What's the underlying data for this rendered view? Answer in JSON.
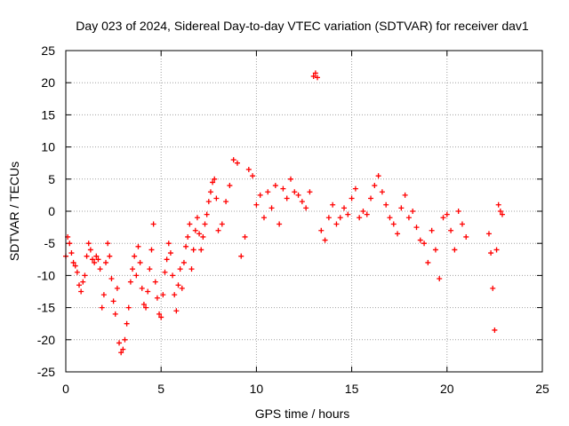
{
  "chart_data": {
    "type": "scatter",
    "title": "Day 023 of 2024, Sidereal Day-to-day VTEC variation (SDTVAR) for receiver dav1",
    "xlabel": "GPS time / hours",
    "ylabel": "SDTVAR / TECUs",
    "xlim": [
      0,
      25
    ],
    "ylim": [
      -25,
      25
    ],
    "xticks": [
      "0",
      "5",
      "10",
      "15",
      "20",
      "25"
    ],
    "yticks": [
      "25",
      "20",
      "15",
      "10",
      "5",
      "0",
      "-5",
      "-10",
      "-15",
      "-20",
      "-25"
    ],
    "grid": true,
    "marker": "+",
    "color": "#ff0000",
    "series": [
      {
        "name": "SDTVAR",
        "x": [
          0.0,
          0.1,
          0.2,
          0.3,
          0.4,
          0.5,
          0.6,
          0.7,
          0.8,
          0.9,
          1.0,
          1.1,
          1.2,
          1.3,
          1.4,
          1.5,
          1.6,
          1.7,
          1.8,
          1.9,
          2.0,
          2.1,
          2.2,
          2.3,
          2.4,
          2.5,
          2.6,
          2.7,
          2.8,
          2.9,
          3.0,
          3.1,
          3.2,
          3.3,
          3.4,
          3.5,
          3.6,
          3.7,
          3.8,
          3.9,
          4.0,
          4.1,
          4.2,
          4.3,
          4.4,
          4.5,
          4.6,
          4.7,
          4.8,
          4.9,
          5.0,
          5.1,
          5.2,
          5.3,
          5.4,
          5.5,
          5.6,
          5.7,
          5.8,
          5.9,
          6.0,
          6.1,
          6.2,
          6.3,
          6.4,
          6.5,
          6.6,
          6.7,
          6.8,
          6.9,
          7.0,
          7.1,
          7.2,
          7.3,
          7.4,
          7.5,
          7.6,
          7.7,
          7.8,
          7.9,
          8.0,
          8.2,
          8.4,
          8.6,
          8.8,
          9.0,
          9.2,
          9.4,
          9.6,
          9.8,
          10.0,
          10.2,
          10.4,
          10.6,
          10.8,
          11.0,
          11.2,
          11.4,
          11.6,
          11.8,
          12.0,
          12.2,
          12.4,
          12.6,
          12.8,
          13.0,
          13.1,
          13.2,
          13.4,
          13.6,
          13.8,
          14.0,
          14.2,
          14.4,
          14.6,
          14.8,
          15.0,
          15.2,
          15.4,
          15.6,
          15.8,
          16.0,
          16.2,
          16.4,
          16.6,
          16.8,
          17.0,
          17.2,
          17.4,
          17.6,
          17.8,
          18.0,
          18.2,
          18.4,
          18.6,
          18.8,
          19.0,
          19.2,
          19.4,
          19.6,
          19.8,
          20.0,
          20.2,
          20.4,
          20.6,
          20.8,
          21.0,
          22.2,
          22.3,
          22.4,
          22.5,
          22.6,
          22.7,
          22.8,
          22.9
        ],
        "y": [
          -7.0,
          -4.0,
          -5.0,
          -6.5,
          -8.0,
          -8.5,
          -9.5,
          -11.5,
          -12.5,
          -11.0,
          -10.0,
          -7.0,
          -5.0,
          -6.0,
          -7.5,
          -8.0,
          -7.0,
          -7.5,
          -9.0,
          -15.0,
          -13.0,
          -8.0,
          -5.0,
          -7.0,
          -10.5,
          -14.0,
          -16.0,
          -12.0,
          -20.5,
          -22.0,
          -21.5,
          -20.0,
          -17.5,
          -15.0,
          -11.0,
          -9.0,
          -7.0,
          -10.0,
          -5.5,
          -8.0,
          -12.0,
          -14.5,
          -15.0,
          -12.5,
          -9.0,
          -6.0,
          -2.0,
          -11.0,
          -13.5,
          -16.0,
          -16.5,
          -13.0,
          -9.5,
          -7.5,
          -5.0,
          -6.5,
          -10.0,
          -13.0,
          -15.5,
          -11.5,
          -9.0,
          -12.0,
          -8.0,
          -5.5,
          -4.0,
          -2.0,
          -9.0,
          -6.0,
          -3.0,
          -1.0,
          -3.5,
          -6.0,
          -4.0,
          -2.0,
          -0.5,
          1.5,
          3.0,
          4.5,
          5.0,
          2.0,
          -3.0,
          -2.0,
          1.5,
          4.0,
          8.0,
          7.5,
          -7.0,
          -4.0,
          6.5,
          5.5,
          1.0,
          2.5,
          -1.0,
          3.0,
          0.5,
          4.0,
          -2.0,
          3.5,
          2.0,
          5.0,
          3.0,
          2.5,
          1.5,
          0.5,
          3.0,
          21.0,
          21.5,
          20.8,
          -3.0,
          -4.5,
          -1.0,
          1.0,
          -2.0,
          -1.0,
          0.5,
          -0.5,
          2.0,
          3.5,
          -1.0,
          0.0,
          -0.5,
          2.0,
          4.0,
          5.5,
          3.0,
          1.0,
          -1.0,
          -2.0,
          -3.5,
          0.5,
          2.5,
          -1.0,
          0.0,
          -2.5,
          -4.5,
          -5.0,
          -8.0,
          -3.0,
          -6.0,
          -10.5,
          -1.0,
          -0.5,
          -3.0,
          -6.0,
          0.0,
          -2.0,
          -4.0,
          -3.5,
          -6.5,
          -12.0,
          -18.5,
          -6.0,
          1.0,
          0.0,
          -0.5
        ]
      }
    ]
  }
}
